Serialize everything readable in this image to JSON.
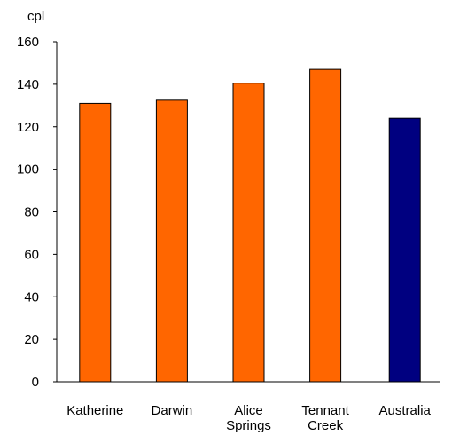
{
  "chart_data": {
    "type": "bar",
    "ylabel": "cpl",
    "xlabel": "",
    "title": "",
    "ylim": [
      0,
      160
    ],
    "yticks": [
      0,
      20,
      40,
      60,
      80,
      100,
      120,
      140,
      160
    ],
    "grid": false,
    "legend": "none",
    "categories": [
      [
        "Katherine"
      ],
      [
        "Darwin"
      ],
      [
        "Alice",
        "Springs"
      ],
      [
        "Tennant",
        "Creek"
      ],
      [
        "Australia"
      ]
    ],
    "values": [
      131,
      132.5,
      140.5,
      147,
      124
    ],
    "colors": [
      "#ff6600",
      "#ff6600",
      "#ff6600",
      "#ff6600",
      "#000080"
    ],
    "bar_edge_color": "#000000"
  }
}
